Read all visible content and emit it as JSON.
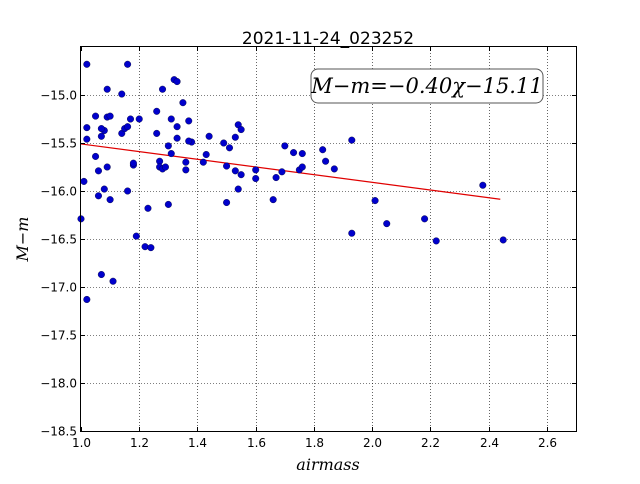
{
  "chart_data": {
    "type": "scatter",
    "title": "2021-11-24_023252",
    "xlabel": "airmass",
    "ylabel": "M−m",
    "xlim": [
      1.0,
      2.7
    ],
    "ylim": [
      -18.5,
      -14.5
    ],
    "y_inverted": true,
    "grid": true,
    "grid_style": "dotted",
    "x_ticks": [
      "1.0",
      "1.2",
      "1.4",
      "1.6",
      "1.8",
      "2.0",
      "2.2",
      "2.4",
      "2.6"
    ],
    "y_ticks": [
      "−15.0",
      "−15.5",
      "−16.0",
      "−16.5",
      "−17.0",
      "−17.5",
      "−18.0",
      "−18.5"
    ],
    "annotation": "M−m=−0.40χ−15.11",
    "annotation_position": "top-right",
    "colors": {
      "points": "#0000cc",
      "fit": "#e00000"
    },
    "fit": {
      "slope": -0.4,
      "intercept": -15.11,
      "x_range": [
        1.0,
        2.44
      ]
    },
    "series": [
      {
        "marker": "circle",
        "x": [
          1.02,
          1.02,
          1.02,
          1.01,
          1.0,
          1.02,
          1.05,
          1.05,
          1.06,
          1.06,
          1.07,
          1.07,
          1.08,
          1.08,
          1.09,
          1.09,
          1.09,
          1.1,
          1.1,
          1.07,
          1.11,
          1.14,
          1.14,
          1.15,
          1.16,
          1.16,
          1.16,
          1.17,
          1.18,
          1.19,
          1.2,
          1.22,
          1.24,
          1.23,
          1.26,
          1.26,
          1.27,
          1.27,
          1.28,
          1.28,
          1.29,
          1.3,
          1.3,
          1.31,
          1.31,
          1.32,
          1.33,
          1.33,
          1.33,
          1.35,
          1.36,
          1.36,
          1.37,
          1.38,
          1.42,
          1.43,
          1.44,
          1.49,
          1.5,
          1.5,
          1.51,
          1.53,
          1.53,
          1.54,
          1.54,
          1.55,
          1.55,
          1.6,
          1.6,
          1.66,
          1.67,
          1.69,
          1.7,
          1.73,
          1.75,
          1.76,
          1.76,
          1.83,
          1.84,
          1.87,
          1.93,
          1.93,
          2.01,
          2.05,
          2.18,
          2.22,
          2.38,
          2.45,
          1.18,
          1.37
        ],
        "y": [
          -14.68,
          -15.34,
          -15.46,
          -15.9,
          -16.29,
          -17.13,
          -15.22,
          -15.64,
          -15.79,
          -16.05,
          -15.43,
          -16.87,
          -15.98,
          -15.37,
          -14.94,
          -15.23,
          -15.75,
          -15.22,
          -16.09,
          -15.35,
          -16.94,
          -14.99,
          -15.4,
          -15.35,
          -14.68,
          -15.33,
          -16.0,
          -15.25,
          -15.73,
          -16.47,
          -15.25,
          -16.58,
          -16.59,
          -16.18,
          -15.17,
          -15.4,
          -15.69,
          -15.75,
          -14.94,
          -15.77,
          -15.75,
          -15.53,
          -16.14,
          -15.25,
          -15.61,
          -14.84,
          -14.86,
          -15.33,
          -15.45,
          -15.08,
          -15.7,
          -15.78,
          -15.27,
          -15.49,
          -15.7,
          -15.62,
          -15.43,
          -15.5,
          -15.74,
          -16.12,
          -15.55,
          -15.44,
          -15.79,
          -15.31,
          -15.98,
          -15.36,
          -15.83,
          -15.78,
          -15.87,
          -16.09,
          -15.86,
          -15.8,
          -15.53,
          -15.6,
          -15.78,
          -15.75,
          -15.61,
          -15.57,
          -15.69,
          -15.77,
          -15.47,
          -16.44,
          -16.1,
          -16.34,
          -16.29,
          -16.52,
          -15.94,
          -16.51,
          -15.71,
          -15.48
        ]
      }
    ]
  }
}
